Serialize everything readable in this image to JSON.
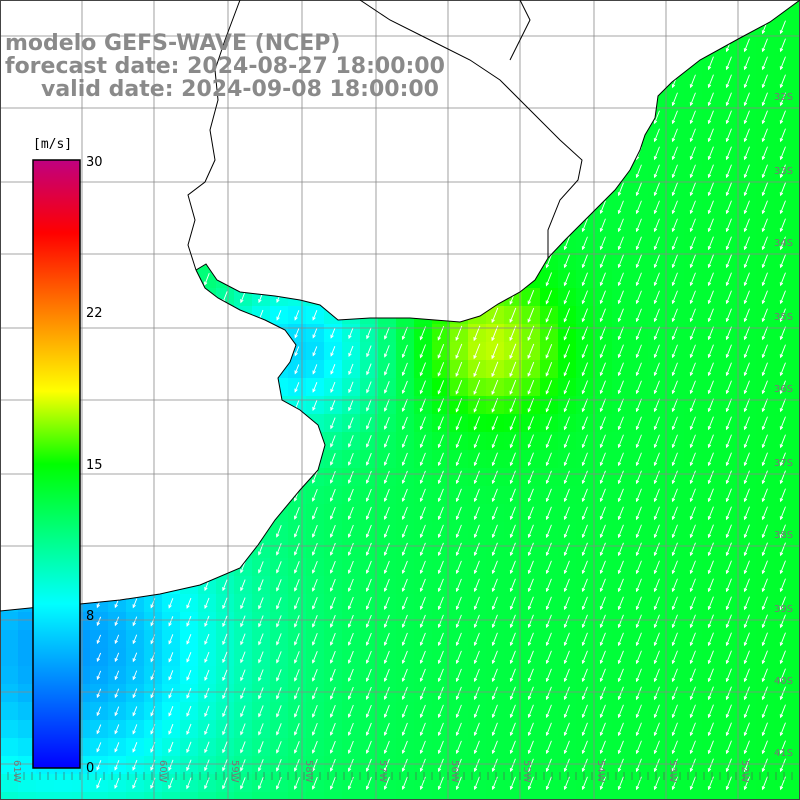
{
  "title": {
    "line1": "modelo GEFS-WAVE (NCEP)",
    "line2": "forecast date: 2024-08-27 18:00:00",
    "line3": "valid date: 2024-09-08 18:00:00"
  },
  "colorbar": {
    "unit": "[m/s]",
    "ticks": [
      "30",
      "22",
      "15",
      "8",
      "0"
    ],
    "min": 0,
    "max": 30,
    "colors": [
      "#0000ff",
      "#00ffff",
      "#00ff00",
      "#ffff00",
      "#ff8000",
      "#ff0000",
      "#c00080"
    ]
  },
  "axes": {
    "lat_labels": [
      "32S",
      "33S",
      "34S",
      "35S",
      "36S",
      "37S",
      "38S",
      "39S",
      "40S",
      "41S"
    ],
    "lon_labels": [
      "61W",
      "60W",
      "59W",
      "58W",
      "57W",
      "56W",
      "55W",
      "54W",
      "53W",
      "52W"
    ]
  },
  "wind": {
    "arrow_direction": "southwest",
    "colors": {
      "ocean": "#00ff00",
      "coast_low": "#0050ff",
      "high": "#ffff00",
      "land": "#ffffff"
    }
  }
}
